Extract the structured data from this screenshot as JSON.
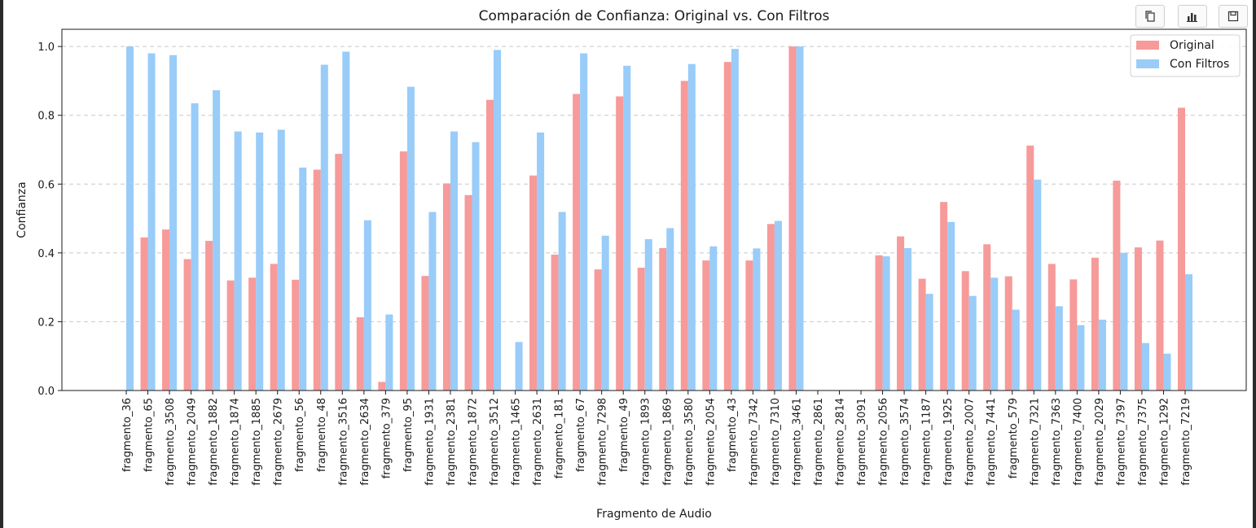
{
  "toolbar": {
    "buttons": [
      {
        "icon": "copy-icon"
      },
      {
        "icon": "bar-chart-icon"
      },
      {
        "icon": "save-icon"
      }
    ]
  },
  "chart_data": {
    "type": "bar",
    "title": "Comparación de Confianza: Original vs. Con Filtros",
    "xlabel": "Fragmento de Audio",
    "ylabel": "Confianza",
    "ylim": [
      0,
      1.05
    ],
    "yticks": [
      "0.0",
      "0.2",
      "0.4",
      "0.6",
      "0.8",
      "1.0"
    ],
    "grid": "y-dashed",
    "legend_position": "top-right",
    "categories": [
      "fragmento_36",
      "fragmento_65",
      "fragmento_3508",
      "fragmento_2049",
      "fragmento_1882",
      "fragmento_1874",
      "fragmento_1885",
      "fragmento_2679",
      "fragmento_56",
      "fragmento_48",
      "fragmento_3516",
      "fragmento_2634",
      "fragmento_379",
      "fragmento_95",
      "fragmento_1931",
      "fragmento_2381",
      "fragmento_1872",
      "fragmento_3512",
      "fragmento_1465",
      "fragmento_2631",
      "fragmento_181",
      "fragmento_67",
      "fragmento_7298",
      "fragmento_49",
      "fragmento_1893",
      "fragmento_1869",
      "fragmento_3580",
      "fragmento_2054",
      "fragmento_43",
      "fragmento_7342",
      "fragmento_7310",
      "fragmento_3461",
      "fragmento_2861",
      "fragmento_2814",
      "fragmento_3091",
      "fragmento_2056",
      "fragmento_3574",
      "fragmento_1187",
      "fragmento_1925",
      "fragmento_2007",
      "fragmento_7441",
      "fragmento_579",
      "fragmento_7321",
      "fragmento_7363",
      "fragmento_7400",
      "fragmento_2029",
      "fragmento_7397",
      "fragmento_7375",
      "fragmento_1292",
      "fragmento_7219"
    ],
    "series": [
      {
        "name": "Original",
        "color": "#f79a9a",
        "values": [
          0,
          0.445,
          0.468,
          0.382,
          0.435,
          0.32,
          0.328,
          0.368,
          0.322,
          0.642,
          0.688,
          0.213,
          0.025,
          0.695,
          0.333,
          0.602,
          0.568,
          0.845,
          0,
          0.625,
          0.395,
          0.862,
          0.352,
          0.855,
          0.357,
          0.414,
          0.9,
          0.378,
          0.955,
          0.378,
          0.484,
          1.0,
          0,
          0,
          0,
          0.393,
          0.448,
          0.325,
          0.548,
          0.347,
          0.425,
          0.332,
          0.712,
          0.368,
          0.323,
          0.386,
          0.61,
          0.416,
          0.436,
          0.822
        ]
      },
      {
        "name": "Con Filtros",
        "color": "#99ccf8",
        "values": [
          1.0,
          0.98,
          0.975,
          0.835,
          0.873,
          0.753,
          0.75,
          0.758,
          0.648,
          0.947,
          0.985,
          0.495,
          0.221,
          0.883,
          0.519,
          0.753,
          0.722,
          0.99,
          0.141,
          0.75,
          0.519,
          0.98,
          0.45,
          0.944,
          0.44,
          0.472,
          0.949,
          0.419,
          0.993,
          0.413,
          0.493,
          1.0,
          0,
          0,
          0,
          0.39,
          0.414,
          0.281,
          0.49,
          0.275,
          0.328,
          0.235,
          0.613,
          0.245,
          0.19,
          0.206,
          0.4,
          0.138,
          0.107,
          0.338
        ]
      }
    ]
  }
}
